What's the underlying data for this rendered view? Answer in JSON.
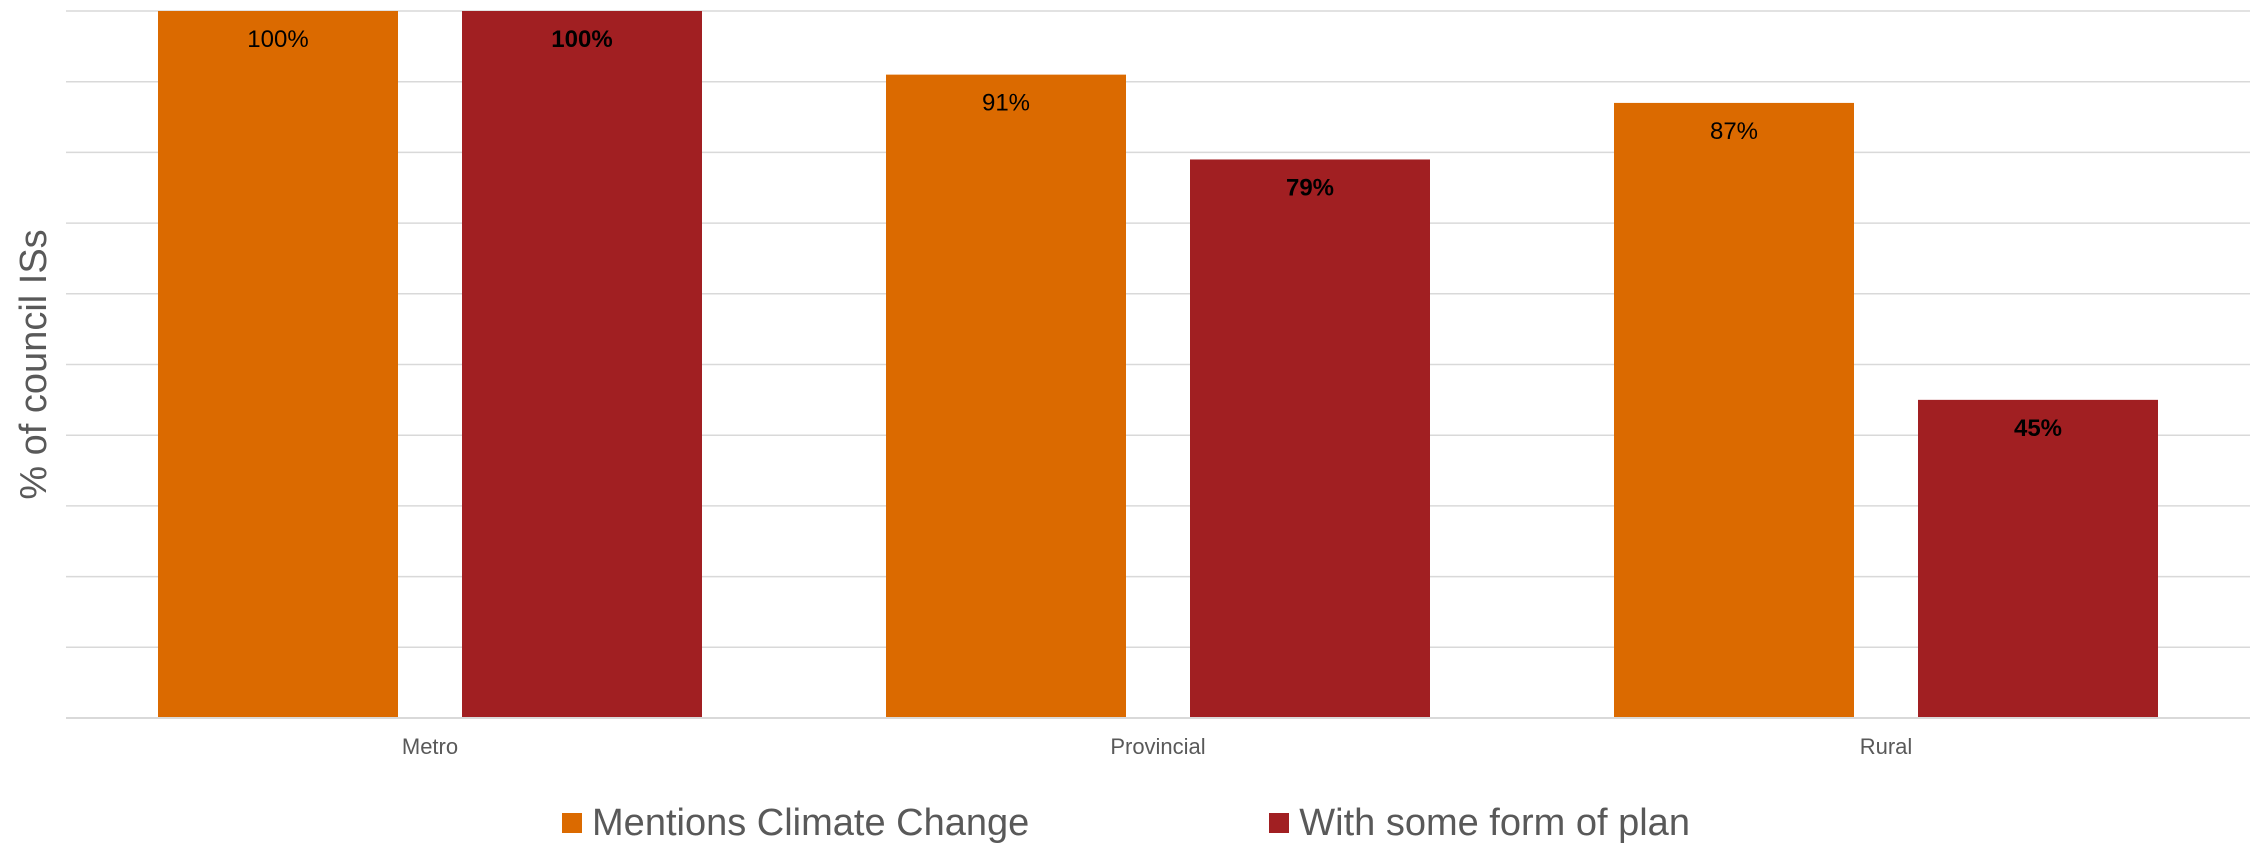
{
  "chart_data": {
    "type": "bar",
    "title": "",
    "xlabel": "",
    "ylabel": "% of council ISs",
    "ylim": [
      0,
      100
    ],
    "gridlines": 10,
    "grid": true,
    "legend_position": "bottom",
    "categories": [
      "Metro",
      "Provincial",
      "Rural"
    ],
    "series": [
      {
        "name": "Mentions Climate Change",
        "color": "#DB6A00",
        "values": [
          100,
          91,
          87
        ],
        "labels": [
          "100%",
          "91%",
          "87%"
        ],
        "label_bold": false
      },
      {
        "name": "With some form of plan",
        "color": "#A11F22",
        "values": [
          100,
          79,
          45
        ],
        "labels": [
          "100%",
          "79%",
          "45%"
        ],
        "label_bold": true
      }
    ]
  }
}
